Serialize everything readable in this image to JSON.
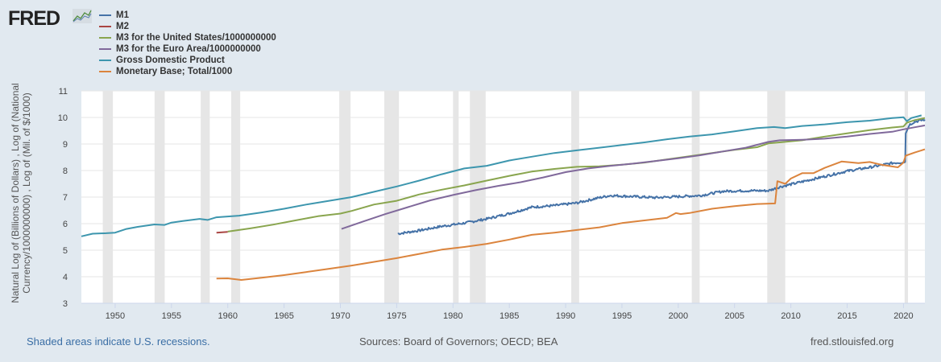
{
  "header": {
    "logo_text": "FRED",
    "logo_icon": "chart-line-icon"
  },
  "footer": {
    "recession_note": "Shaded areas indicate U.S. recessions.",
    "sources": "Sources: Board of Governors; OECD; BEA",
    "site": "fred.stlouisfed.org"
  },
  "chart_data": {
    "type": "line",
    "title": "",
    "xlabel": "",
    "ylabel": "Natural Log of (Billions of Dollars) , Log of (National Currency/1000000000) , Log of (Mil. of $/1000)",
    "ylim": [
      3,
      11
    ],
    "xlim": [
      1947,
      2021.9
    ],
    "yticks": [
      3,
      4,
      5,
      6,
      7,
      8,
      9,
      10,
      11
    ],
    "xticks": [
      1950,
      1955,
      1960,
      1965,
      1970,
      1975,
      1980,
      1985,
      1990,
      1995,
      2000,
      2005,
      2010,
      2015,
      2020
    ],
    "grid": true,
    "legend_position": "top-left",
    "recessions": [
      [
        1948.9,
        1949.8
      ],
      [
        1953.5,
        1954.4
      ],
      [
        1957.6,
        1958.4
      ],
      [
        1960.3,
        1961.1
      ],
      [
        1969.9,
        1970.9
      ],
      [
        1973.9,
        1975.2
      ],
      [
        1980.0,
        1980.5
      ],
      [
        1981.5,
        1982.9
      ],
      [
        1990.5,
        1991.2
      ],
      [
        2001.2,
        2001.9
      ],
      [
        2007.9,
        2009.5
      ],
      [
        2020.1,
        2020.4
      ]
    ],
    "series": [
      {
        "name": "M1",
        "color": "#4572a7",
        "noisy": true,
        "x": [
          1975.1,
          1977,
          1979,
          1981,
          1983,
          1985,
          1987,
          1989,
          1991,
          1993,
          1994,
          1996,
          1998,
          2000,
          2002,
          2004,
          2006,
          2008,
          2009,
          2011,
          2013,
          2015,
          2017,
          2019,
          2020.15,
          2020.2,
          2020.5,
          2021,
          2021.9
        ],
        "y": [
          5.62,
          5.74,
          5.9,
          6.02,
          6.18,
          6.38,
          6.62,
          6.68,
          6.78,
          6.98,
          7.06,
          7.02,
          6.98,
          7.02,
          7.06,
          7.22,
          7.24,
          7.24,
          7.38,
          7.58,
          7.78,
          7.98,
          8.12,
          8.28,
          8.32,
          9.4,
          9.72,
          9.84,
          9.92
        ]
      },
      {
        "name": "M2",
        "color": "#aa4643",
        "noisy": false,
        "x": [
          1959.0,
          1960.0
        ],
        "y": [
          5.66,
          5.69
        ]
      },
      {
        "name": "M3 for the United States/1000000000",
        "color": "#89a54e",
        "noisy": false,
        "x": [
          1960.0,
          1962,
          1964,
          1966,
          1968,
          1970,
          1971,
          1973,
          1975,
          1977,
          1979,
          1981,
          1983,
          1985,
          1987,
          1989,
          1991,
          1993,
          1995,
          1997,
          1999,
          2001,
          2003,
          2005,
          2007,
          2008,
          2009,
          2011,
          2013,
          2015,
          2017,
          2019,
          2020.0,
          2020.3,
          2021,
          2021.9
        ],
        "y": [
          5.7,
          5.82,
          5.96,
          6.12,
          6.28,
          6.38,
          6.48,
          6.72,
          6.86,
          7.1,
          7.28,
          7.44,
          7.62,
          7.8,
          7.96,
          8.06,
          8.14,
          8.16,
          8.22,
          8.3,
          8.42,
          8.54,
          8.66,
          8.78,
          8.88,
          9.02,
          9.06,
          9.14,
          9.28,
          9.4,
          9.52,
          9.62,
          9.66,
          9.8,
          9.9,
          9.98
        ]
      },
      {
        "name": "M3 for the Euro Area/1000000000",
        "color": "#80699b",
        "noisy": false,
        "x": [
          1970.1,
          1972,
          1974,
          1976,
          1978,
          1980,
          1982,
          1984,
          1986,
          1988,
          1990,
          1992,
          1994,
          1996,
          1998,
          2000,
          2002,
          2004,
          2006,
          2008,
          2009,
          2011,
          2013,
          2015,
          2017,
          2019,
          2020,
          2021,
          2021.9
        ],
        "y": [
          5.8,
          6.08,
          6.36,
          6.62,
          6.88,
          7.08,
          7.26,
          7.42,
          7.56,
          7.74,
          7.94,
          8.08,
          8.18,
          8.26,
          8.36,
          8.46,
          8.58,
          8.72,
          8.86,
          9.08,
          9.14,
          9.16,
          9.2,
          9.28,
          9.38,
          9.46,
          9.55,
          9.63,
          9.7
        ]
      },
      {
        "name": "Gross Domestic Product",
        "color": "#3d96ae",
        "noisy": false,
        "x": [
          1947.0,
          1948,
          1949.2,
          1950,
          1951,
          1952,
          1953.5,
          1954.4,
          1955,
          1956,
          1957.5,
          1958.2,
          1959,
          1961,
          1963,
          1965,
          1967,
          1969,
          1971,
          1973,
          1975,
          1977,
          1979,
          1981,
          1983,
          1985,
          1987,
          1989,
          1991,
          1993,
          1995,
          1997,
          1999,
          2001,
          2003,
          2005,
          2007,
          2008.5,
          2009.5,
          2011,
          2013,
          2015,
          2017,
          2019,
          2020.0,
          2020.3,
          2020.7,
          2021.6
        ],
        "y": [
          5.52,
          5.62,
          5.64,
          5.66,
          5.8,
          5.88,
          5.97,
          5.95,
          6.04,
          6.1,
          6.18,
          6.14,
          6.24,
          6.3,
          6.42,
          6.56,
          6.72,
          6.86,
          7.0,
          7.2,
          7.4,
          7.62,
          7.86,
          8.08,
          8.18,
          8.38,
          8.52,
          8.66,
          8.76,
          8.86,
          8.96,
          9.06,
          9.18,
          9.28,
          9.36,
          9.48,
          9.6,
          9.64,
          9.6,
          9.68,
          9.74,
          9.82,
          9.88,
          9.98,
          10.01,
          9.86,
          9.98,
          10.08
        ]
      },
      {
        "name": "Monetary Base; Total/1000",
        "color": "#db843d",
        "noisy": false,
        "x": [
          1959.0,
          1960,
          1961.2,
          1963,
          1965,
          1967,
          1969,
          1971,
          1973,
          1975,
          1977,
          1979,
          1981,
          1983,
          1985,
          1987,
          1989,
          1991,
          1993,
          1995,
          1997,
          1999,
          1999.8,
          2000.2,
          2001,
          2003,
          2005,
          2007,
          2008.6,
          2008.8,
          2009.5,
          2010,
          2011,
          2012,
          2013,
          2014.5,
          2016,
          2017,
          2018,
          2019.5,
          2020.0,
          2020.2,
          2021,
          2021.9
        ],
        "y": [
          3.93,
          3.94,
          3.88,
          3.96,
          4.06,
          4.18,
          4.3,
          4.42,
          4.56,
          4.7,
          4.86,
          5.02,
          5.12,
          5.24,
          5.4,
          5.58,
          5.66,
          5.76,
          5.86,
          6.02,
          6.12,
          6.22,
          6.4,
          6.36,
          6.4,
          6.56,
          6.66,
          6.74,
          6.76,
          7.6,
          7.5,
          7.7,
          7.9,
          7.9,
          8.1,
          8.34,
          8.28,
          8.32,
          8.22,
          8.12,
          8.3,
          8.56,
          8.68,
          8.8
        ]
      }
    ]
  }
}
